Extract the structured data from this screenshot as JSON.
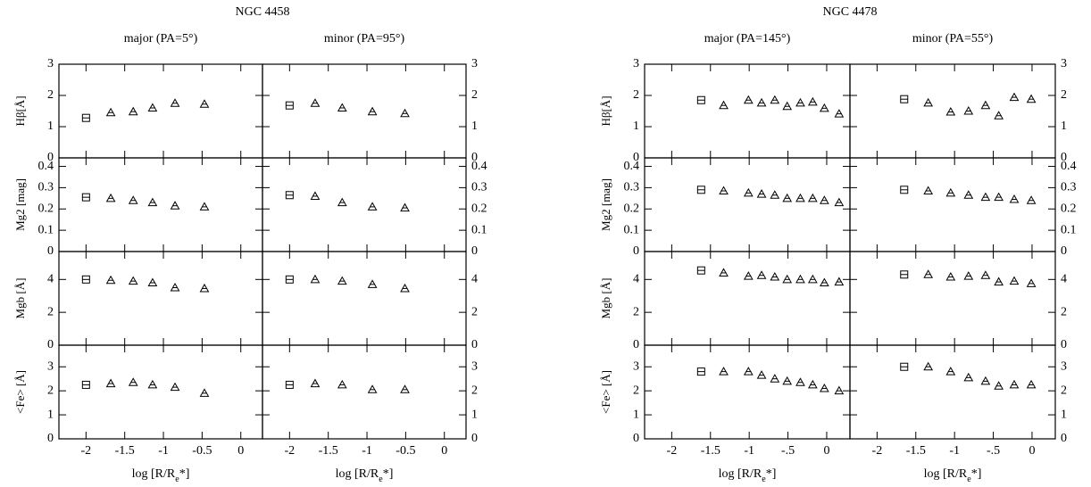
{
  "galaxies": [
    "NGC 4458",
    "NGC 4478"
  ],
  "chart_data": [
    {
      "type": "scatter",
      "title": "major (PA=5°)",
      "ylabel": "Hβ[Å]",
      "x": [
        -2,
        -1.68,
        -1.39,
        -1.14,
        -0.85,
        -0.47
      ],
      "values": [
        1.28,
        1.45,
        1.48,
        1.6,
        1.75,
        1.72
      ],
      "xlim": [
        -2.35,
        0.28
      ],
      "ylim": [
        0,
        3
      ],
      "xticks": [
        -2,
        -1.5,
        -1,
        -0.5,
        0
      ],
      "yticks": [
        0,
        1,
        2,
        3
      ]
    },
    {
      "type": "scatter",
      "ylabel": "Mg2 [mag]",
      "x": [
        -2,
        -1.68,
        -1.39,
        -1.14,
        -0.85,
        -0.47
      ],
      "values": [
        0.255,
        0.25,
        0.24,
        0.23,
        0.215,
        0.21
      ],
      "xlim": [
        -2.35,
        0.28
      ],
      "ylim": [
        0,
        0.44
      ],
      "xticks": [
        -2,
        -1.5,
        -1,
        -0.5,
        0
      ],
      "yticks": [
        0,
        0.1,
        0.2,
        0.3,
        0.4
      ]
    },
    {
      "type": "scatter",
      "ylabel": "Mgb [Å]",
      "x": [
        -2,
        -1.68,
        -1.39,
        -1.14,
        -0.85,
        -0.47
      ],
      "values": [
        4.0,
        3.95,
        3.9,
        3.8,
        3.5,
        3.45
      ],
      "xlim": [
        -2.35,
        0.28
      ],
      "ylim": [
        0,
        5.7
      ],
      "xticks": [
        -2,
        -1.5,
        -1,
        -0.5,
        0
      ],
      "yticks": [
        0,
        2,
        4
      ]
    },
    {
      "type": "scatter",
      "ylabel": "<Fe> [Å]",
      "xlabel": [
        "log [R/R",
        "e",
        "*]"
      ],
      "x": [
        -2,
        -1.68,
        -1.39,
        -1.14,
        -0.85,
        -0.47
      ],
      "values": [
        2.25,
        2.3,
        2.35,
        2.25,
        2.15,
        1.9
      ],
      "xlim": [
        -2.35,
        0.28
      ],
      "ylim": [
        0,
        3.9
      ],
      "xticks": [
        -2,
        -1.5,
        -1,
        -0.5,
        0
      ],
      "yticks": [
        0,
        1,
        2,
        3
      ]
    },
    {
      "type": "scatter",
      "title": "minor (PA=95°)",
      "x": [
        -2,
        -1.67,
        -1.32,
        -0.93,
        -0.51
      ],
      "values": [
        1.68,
        1.75,
        1.6,
        1.48,
        1.42
      ],
      "xlim": [
        -2.35,
        0.28
      ],
      "ylim": [
        0,
        3
      ],
      "xticks": [
        -2,
        -1.5,
        -1,
        -0.5,
        0
      ],
      "yticks": [
        0,
        1,
        2,
        3
      ]
    },
    {
      "type": "scatter",
      "x": [
        -2,
        -1.67,
        -1.32,
        -0.93,
        -0.51
      ],
      "values": [
        0.265,
        0.26,
        0.23,
        0.21,
        0.205
      ],
      "xlim": [
        -2.35,
        0.28
      ],
      "ylim": [
        0,
        0.44
      ],
      "xticks": [
        -2,
        -1.5,
        -1,
        -0.5,
        0
      ],
      "yticks": [
        0,
        0.1,
        0.2,
        0.3,
        0.4
      ]
    },
    {
      "type": "scatter",
      "x": [
        -2,
        -1.67,
        -1.32,
        -0.93,
        -0.51
      ],
      "values": [
        4.0,
        4.0,
        3.9,
        3.7,
        3.45
      ],
      "xlim": [
        -2.35,
        0.28
      ],
      "ylim": [
        0,
        5.7
      ],
      "xticks": [
        -2,
        -1.5,
        -1,
        -0.5,
        0
      ],
      "yticks": [
        0,
        2,
        4
      ]
    },
    {
      "type": "scatter",
      "xlabel": [
        "log [R/R",
        "e",
        "*]"
      ],
      "x": [
        -2,
        -1.67,
        -1.32,
        -0.93,
        -0.51
      ],
      "values": [
        2.25,
        2.3,
        2.25,
        2.05,
        2.05
      ],
      "xlim": [
        -2.35,
        0.28
      ],
      "ylim": [
        0,
        3.9
      ],
      "xticks": [
        -2,
        -1.5,
        -1,
        -0.5,
        0
      ],
      "yticks": [
        0,
        1,
        2,
        3
      ]
    },
    {
      "type": "scatter",
      "title": "major (PA=145°)",
      "ylabel": "Hβ[Å]",
      "x": [
        -1.62,
        -1.33,
        -1.01,
        -0.84,
        -0.67,
        -0.51,
        -0.34,
        -0.18,
        -0.03,
        0.16
      ],
      "values": [
        1.85,
        1.68,
        1.85,
        1.76,
        1.85,
        1.65,
        1.76,
        1.79,
        1.59,
        1.41
      ],
      "xlim": [
        -2.35,
        0.3
      ],
      "ylim": [
        0,
        3
      ],
      "xticks": [
        -2,
        -1.5,
        -1,
        {
          "value": -0.5,
          "label": "-.5"
        },
        0
      ],
      "yticks": [
        0,
        1,
        2,
        3
      ]
    },
    {
      "type": "scatter",
      "ylabel": "Mg2 [mag]",
      "x": [
        -1.62,
        -1.33,
        -1.01,
        -0.84,
        -0.67,
        -0.51,
        -0.34,
        -0.18,
        -0.03,
        0.16
      ],
      "values": [
        0.29,
        0.285,
        0.275,
        0.27,
        0.265,
        0.25,
        0.25,
        0.25,
        0.24,
        0.23
      ],
      "xlim": [
        -2.35,
        0.3
      ],
      "ylim": [
        0,
        0.44
      ],
      "xticks": [
        -2,
        -1.5,
        -1,
        {
          "value": -0.5,
          "label": "-.5"
        },
        0
      ],
      "yticks": [
        0,
        0.1,
        0.2,
        0.3,
        0.4
      ]
    },
    {
      "type": "scatter",
      "ylabel": "Mgb [Å]",
      "x": [
        -1.62,
        -1.33,
        -1.01,
        -0.84,
        -0.67,
        -0.51,
        -0.34,
        -0.18,
        -0.03,
        0.16
      ],
      "values": [
        4.55,
        4.4,
        4.2,
        4.25,
        4.15,
        4.0,
        4.0,
        4.0,
        3.8,
        3.85
      ],
      "xlim": [
        -2.35,
        0.3
      ],
      "ylim": [
        0,
        5.7
      ],
      "xticks": [
        -2,
        -1.5,
        -1,
        {
          "value": -0.5,
          "label": "-.5"
        },
        0
      ],
      "yticks": [
        0,
        2,
        4
      ]
    },
    {
      "type": "scatter",
      "ylabel": "<Fe> [Å]",
      "xlabel": [
        "log [R/R",
        "e",
        "*]"
      ],
      "x": [
        -1.62,
        -1.33,
        -1.01,
        -0.84,
        -0.67,
        -0.51,
        -0.34,
        -0.18,
        -0.03,
        0.16
      ],
      "values": [
        2.8,
        2.8,
        2.8,
        2.65,
        2.5,
        2.4,
        2.35,
        2.25,
        2.1,
        2.0
      ],
      "xlim": [
        -2.35,
        0.3
      ],
      "ylim": [
        0,
        3.9
      ],
      "xticks": [
        -2,
        -1.5,
        -1,
        {
          "value": -0.5,
          "label": "-.5"
        },
        0
      ],
      "yticks": [
        0,
        1,
        2,
        3
      ]
    },
    {
      "type": "scatter",
      "title": "minor (PA=55°)",
      "x": [
        -1.65,
        -1.34,
        -1.05,
        -0.82,
        -0.6,
        -0.43,
        -0.23,
        -0.01
      ],
      "values": [
        1.88,
        1.76,
        1.47,
        1.5,
        1.68,
        1.35,
        1.94,
        1.88
      ],
      "xlim": [
        -2.35,
        0.3
      ],
      "ylim": [
        0,
        3
      ],
      "xticks": [
        -2,
        -1.5,
        -1,
        {
          "value": -0.5,
          "label": "-.5"
        },
        0
      ],
      "yticks": [
        0,
        1,
        2,
        3
      ]
    },
    {
      "type": "scatter",
      "x": [
        -1.65,
        -1.34,
        -1.05,
        -0.82,
        -0.6,
        -0.43,
        -0.23,
        -0.01
      ],
      "values": [
        0.29,
        0.285,
        0.275,
        0.265,
        0.255,
        0.255,
        0.245,
        0.24
      ],
      "xlim": [
        -2.35,
        0.3
      ],
      "ylim": [
        0,
        0.44
      ],
      "xticks": [
        -2,
        -1.5,
        -1,
        {
          "value": -0.5,
          "label": "-.5"
        },
        0
      ],
      "yticks": [
        0,
        0.1,
        0.2,
        0.3,
        0.4
      ]
    },
    {
      "type": "scatter",
      "x": [
        -1.65,
        -1.34,
        -1.05,
        -0.82,
        -0.6,
        -0.43,
        -0.23,
        -0.01
      ],
      "values": [
        4.3,
        4.3,
        4.15,
        4.2,
        4.25,
        3.85,
        3.9,
        3.75
      ],
      "xlim": [
        -2.35,
        0.3
      ],
      "ylim": [
        0,
        5.7
      ],
      "xticks": [
        -2,
        -1.5,
        -1,
        {
          "value": -0.5,
          "label": "-.5"
        },
        0
      ],
      "yticks": [
        0,
        2,
        4
      ]
    },
    {
      "type": "scatter",
      "xlabel": [
        "log [R/R",
        "e",
        "*]"
      ],
      "x": [
        -1.65,
        -1.34,
        -1.05,
        -0.82,
        -0.6,
        -0.43,
        -0.23,
        -0.01
      ],
      "values": [
        3.0,
        3.0,
        2.8,
        2.55,
        2.4,
        2.2,
        2.25,
        2.25
      ],
      "xlim": [
        -2.35,
        0.3
      ],
      "ylim": [
        0,
        3.9
      ],
      "xticks": [
        -2,
        -1.5,
        -1,
        {
          "value": -0.5,
          "label": "-.5"
        },
        0
      ],
      "yticks": [
        0,
        1,
        2,
        3
      ]
    }
  ]
}
